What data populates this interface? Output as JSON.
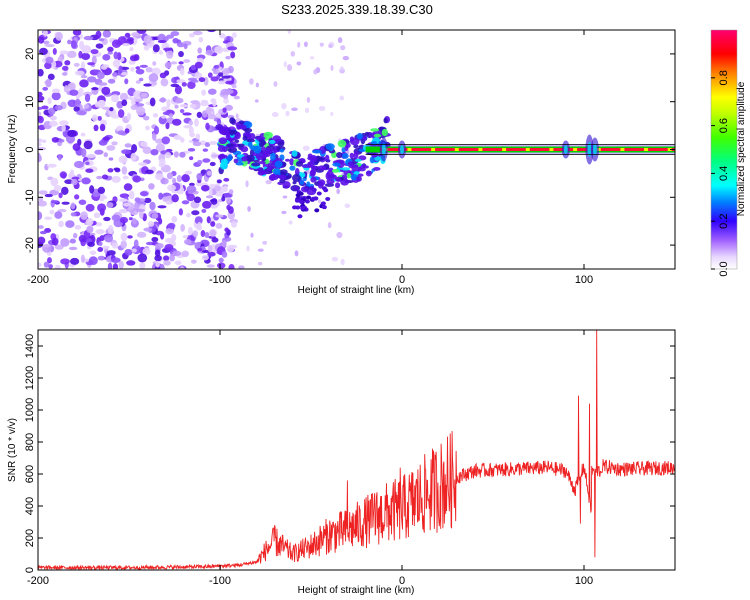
{
  "title": "S233.2025.339.18.39.C30",
  "chart_data": [
    {
      "type": "heatmap",
      "name": "spectrogram",
      "xlabel": "Height of straight line (km)",
      "ylabel": "Frequency (Hz)",
      "xlim": [
        -200,
        150
      ],
      "ylim": [
        -25,
        25
      ],
      "xticks": [
        -200,
        -100,
        0,
        100
      ],
      "yticks": [
        -20,
        -10,
        0,
        10,
        20
      ],
      "colorbar": {
        "label": "Normalized spectral amplitude",
        "range": [
          0,
          1
        ],
        "ticks": [
          0,
          0.2,
          0.4,
          0.6,
          0.8
        ]
      },
      "features": {
        "noise_region_x": [
          -200,
          -100
        ],
        "line_frequency_hz": 0,
        "line_start_km": -20,
        "scatter_ridge": [
          {
            "x": -95,
            "y": 2
          },
          {
            "x": -85,
            "y": 1
          },
          {
            "x": -75,
            "y": -1
          },
          {
            "x": -65,
            "y": -3
          },
          {
            "x": -55,
            "y": -6
          },
          {
            "x": -45,
            "y": -4
          },
          {
            "x": -35,
            "y": -3
          },
          {
            "x": -25,
            "y": -2
          },
          {
            "x": -15,
            "y": 0
          },
          {
            "x": -8,
            "y": 2
          }
        ]
      }
    },
    {
      "type": "line",
      "name": "snr",
      "xlabel": "Height of straight line (km)",
      "ylabel": "SNR (10 * v/v)",
      "xlim": [
        -200,
        150
      ],
      "ylim": [
        0,
        1500
      ],
      "xticks": [
        -200,
        -100,
        0,
        100
      ],
      "yticks": [
        0,
        200,
        400,
        600,
        800,
        1000,
        1200,
        1400
      ],
      "color": "#ee2222",
      "series": [
        {
          "name": "SNR",
          "x": [
            -200,
            -150,
            -110,
            -90,
            -80,
            -75,
            -70,
            -60,
            -50,
            -40,
            -30,
            -20,
            -10,
            0,
            10,
            20,
            30,
            40,
            60,
            80,
            90,
            95,
            100,
            105,
            108,
            110,
            120,
            150
          ],
          "y": [
            15,
            15,
            20,
            30,
            50,
            120,
            180,
            100,
            150,
            220,
            250,
            300,
            350,
            380,
            450,
            520,
            580,
            620,
            630,
            640,
            620,
            500,
            650,
            300,
            1500,
            650,
            630,
            640
          ]
        }
      ],
      "spikes": [
        {
          "x": -70,
          "y": 280
        },
        {
          "x": -30,
          "y": 560
        },
        {
          "x": -15,
          "y": 480
        },
        {
          "x": -1,
          "y": 640
        },
        {
          "x": 97,
          "y": 1090
        },
        {
          "x": 103,
          "y": 1040
        },
        {
          "x": 107,
          "y": 1500
        },
        {
          "x": 106,
          "y": 80
        },
        {
          "x": 98,
          "y": 290
        }
      ]
    }
  ]
}
